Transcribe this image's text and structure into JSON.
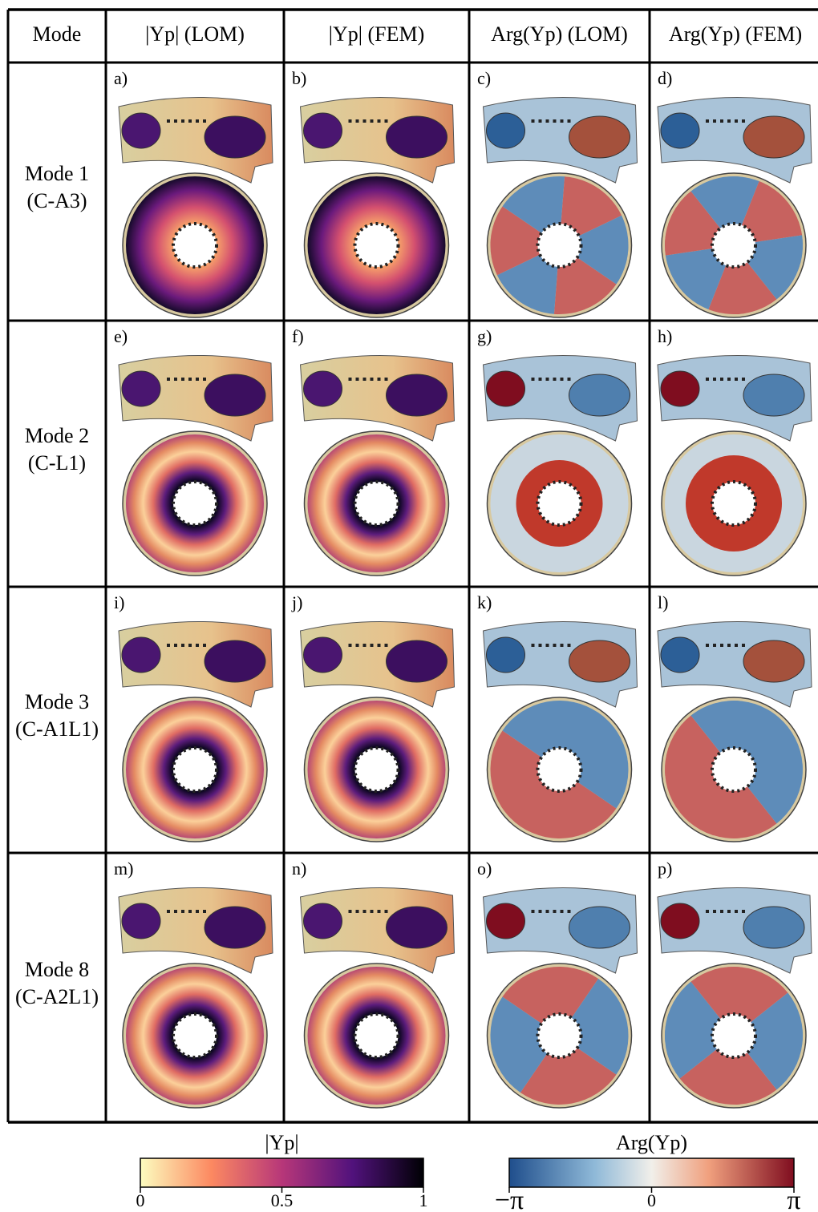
{
  "table": {
    "header": [
      "Mode",
      "|Υp| (LOM)",
      "|Υp| (FEM)",
      "Arg(Υp) (LOM)",
      "Arg(Υp) (FEM)"
    ],
    "rows": [
      {
        "mode": "Mode 1",
        "code": "(C-A3)",
        "panels": [
          "a)",
          "b)",
          "c)",
          "d)"
        ]
      },
      {
        "mode": "Mode 2",
        "code": "(C-L1)",
        "panels": [
          "e)",
          "f)",
          "g)",
          "h)"
        ]
      },
      {
        "mode": "Mode 3",
        "code": "(C-A1L1)",
        "panels": [
          "i)",
          "j)",
          "k)",
          "l)"
        ]
      },
      {
        "mode": "Mode 8",
        "code": "(C-A2L1)",
        "panels": [
          "m)",
          "n)",
          "o)",
          "p)"
        ]
      }
    ]
  },
  "colorbars": [
    {
      "title": "|Υp|",
      "ticks": [
        0,
        0.5,
        1
      ]
    },
    {
      "title": "Arg(Υp)",
      "ticks": [
        {
          "value": -3.14159,
          "label": "−π"
        },
        0,
        {
          "value": 3.14159,
          "label": "π"
        }
      ]
    }
  ]
}
